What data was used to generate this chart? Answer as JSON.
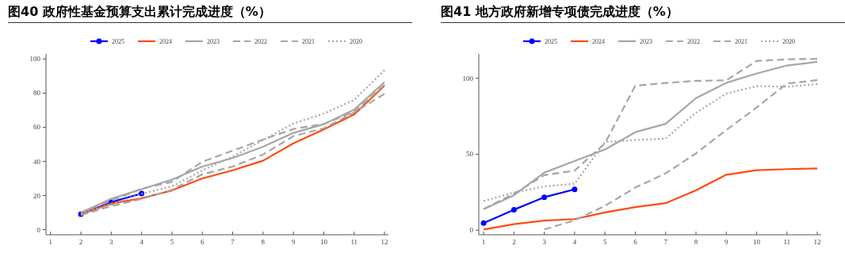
{
  "chart_data": [
    {
      "type": "line",
      "title": "图40 政府性基金预算支出累计完成进度（%）",
      "x": [
        2,
        3,
        4,
        5,
        6,
        7,
        8,
        9,
        10,
        11,
        12
      ],
      "xlim": [
        0.85,
        12.13
      ],
      "xticks": [
        1,
        2,
        3,
        4,
        5,
        6,
        7,
        8,
        9,
        10,
        11,
        12
      ],
      "ylim": [
        -3,
        103
      ],
      "yticks": [
        0,
        20,
        40,
        60,
        80,
        100
      ],
      "legend": "top",
      "grid": false,
      "series": [
        {
          "name": "2025",
          "color": "#0000ff",
          "marker": "circle",
          "line_style": "solid",
          "values": [
            9.1,
            16.1,
            21.2,
            null,
            null,
            null,
            null,
            null,
            null,
            null,
            null
          ]
        },
        {
          "name": "2024",
          "color": "#ff4a0f",
          "marker": "none",
          "line_style": "solid",
          "values": [
            9,
            15.3,
            18.4,
            23,
            30,
            34.8,
            40.4,
            50.6,
            58.7,
            67.5,
            84.4
          ]
        },
        {
          "name": "2023",
          "color": "#a6a6a6",
          "marker": "none",
          "line_style": "solid",
          "values": [
            10,
            18.1,
            23.7,
            29.3,
            37,
            42,
            48.6,
            56.7,
            61.8,
            70.3,
            86.5
          ]
        },
        {
          "name": "2022",
          "color": "#a6a6a6",
          "marker": "none",
          "line_style": "dashed",
          "values": [
            10,
            17,
            24,
            28,
            39.8,
            46.3,
            52.8,
            59,
            62,
            69,
            85
          ]
        },
        {
          "name": "2021",
          "color": "#a6a6a6",
          "marker": "none",
          "line_style": "dashed",
          "values": [
            8.5,
            13.8,
            18,
            23.4,
            32.4,
            37,
            44,
            54.8,
            59.4,
            68.7,
            79.6
          ]
        },
        {
          "name": "2020",
          "color": "#a6a6a6",
          "marker": "none",
          "line_style": "dotted",
          "values": [
            9.5,
            15,
            21,
            25.4,
            34.7,
            42.9,
            52.5,
            62.2,
            68,
            76,
            93.5
          ]
        }
      ]
    },
    {
      "type": "line",
      "title": "图41 地方政府新增专项债完成进度（%）",
      "x": [
        1,
        2,
        3,
        4,
        5,
        6,
        7,
        8,
        9,
        10,
        11,
        12
      ],
      "xlim": [
        0.84,
        12.13
      ],
      "xticks": [
        1,
        2,
        3,
        4,
        5,
        6,
        7,
        8,
        9,
        10,
        11,
        12
      ],
      "ylim": [
        -3,
        116
      ],
      "yticks": [
        0,
        50,
        100
      ],
      "legend": "top",
      "grid": false,
      "series": [
        {
          "name": "2025",
          "color": "#0000ff",
          "marker": "circle",
          "line_style": "solid",
          "values": [
            4.7,
            13.5,
            21.7,
            26.9,
            null,
            null,
            null,
            null,
            null,
            null,
            null,
            null
          ]
        },
        {
          "name": "2024",
          "color": "#ff4a0f",
          "marker": "none",
          "line_style": "solid",
          "values": [
            0.5,
            4,
            6.3,
            7.3,
            11.7,
            15.2,
            17.8,
            26.2,
            36.5,
            39.5,
            40.2,
            40.6
          ]
        },
        {
          "name": "2023",
          "color": "#a6a6a6",
          "marker": "none",
          "line_style": "solid",
          "values": [
            13.8,
            23,
            37.9,
            45.5,
            53.1,
            64.5,
            70,
            86.9,
            97,
            103.1,
            108.4,
            110.8
          ]
        },
        {
          "name": "2022",
          "color": "#a6a6a6",
          "marker": "none",
          "line_style": "dashed",
          "values": [
            14,
            24,
            36.2,
            39.2,
            57.2,
            95.1,
            96.9,
            98.3,
            98.6,
            111.4,
            112.4,
            112.8
          ]
        },
        {
          "name": "2021",
          "color": "#a6a6a6",
          "marker": "none",
          "line_style": "dashed",
          "values": [
            null,
            null,
            0.5,
            6.5,
            16,
            28,
            37.4,
            50.5,
            65.9,
            80.8,
            96.5,
            98.8
          ]
        },
        {
          "name": "2020",
          "color": "#a6a6a6",
          "marker": "none",
          "line_style": "dotted",
          "values": [
            19.2,
            24.8,
            28.8,
            30.6,
            58,
            59.4,
            60.3,
            77.3,
            89.9,
            94.8,
            94.4,
            96.2
          ]
        }
      ]
    }
  ]
}
